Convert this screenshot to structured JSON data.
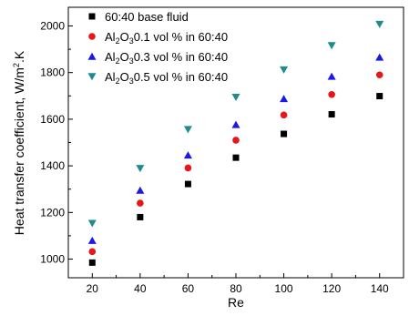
{
  "chart_data": {
    "type": "scatter",
    "xlabel": "Re",
    "ylabel_main": "Heat transfer coefficient, W/m",
    "ylabel_sup": "2",
    "ylabel_tail": ".K",
    "xlim": [
      10,
      150
    ],
    "ylim": [
      920,
      2080
    ],
    "x_ticks": [
      20,
      40,
      60,
      80,
      100,
      120,
      140
    ],
    "y_ticks": [
      1000,
      1200,
      1400,
      1600,
      1800,
      2000
    ],
    "x_tick_labels": [
      "20",
      "40",
      "60",
      "80",
      "100",
      "120",
      "140"
    ],
    "y_tick_labels": [
      "1000",
      "1200",
      "1400",
      "1600",
      "1800",
      "2000"
    ],
    "grid": false,
    "legend_position": "top-left",
    "x": [
      20,
      40,
      60,
      80,
      100,
      120,
      140
    ],
    "series": [
      {
        "name": "60:40 base fluid",
        "label_parts": [
          {
            "t": "60:40 base fluid",
            "sub": false
          }
        ],
        "marker": "square",
        "color": "#000000",
        "values": [
          985,
          1180,
          1322,
          1435,
          1537,
          1621,
          1699
        ]
      },
      {
        "name": "Al2O30.1 vol % in 60:40",
        "label_parts": [
          {
            "t": "Al",
            "sub": false
          },
          {
            "t": "2",
            "sub": true
          },
          {
            "t": "O",
            "sub": false
          },
          {
            "t": "3",
            "sub": true
          },
          {
            "t": "0.1 vol % in 60:40",
            "sub": false
          }
        ],
        "marker": "circle",
        "color": "#e8161b",
        "values": [
          1032,
          1240,
          1391,
          1510,
          1618,
          1706,
          1790
        ]
      },
      {
        "name": "Al2O30.3 vol % in 60:40",
        "label_parts": [
          {
            "t": "Al",
            "sub": false
          },
          {
            "t": "2",
            "sub": true
          },
          {
            "t": "O",
            "sub": false
          },
          {
            "t": "3",
            "sub": true
          },
          {
            "t": "0.3 vol % in 60:40",
            "sub": false
          }
        ],
        "marker": "triangle-up",
        "color": "#1a1ae6",
        "values": [
          1080,
          1295,
          1446,
          1577,
          1688,
          1784,
          1866
        ]
      },
      {
        "name": "Al2O30.5 vol % in 60:40",
        "label_parts": [
          {
            "t": "Al",
            "sub": false
          },
          {
            "t": "2",
            "sub": true
          },
          {
            "t": "O",
            "sub": false
          },
          {
            "t": "3",
            "sub": true
          },
          {
            "t": "0.5 vol % in 60:40",
            "sub": false
          }
        ],
        "marker": "triangle-down",
        "color": "#1f8c8c",
        "values": [
          1153,
          1389,
          1556,
          1694,
          1812,
          1916,
          2007
        ]
      }
    ]
  }
}
